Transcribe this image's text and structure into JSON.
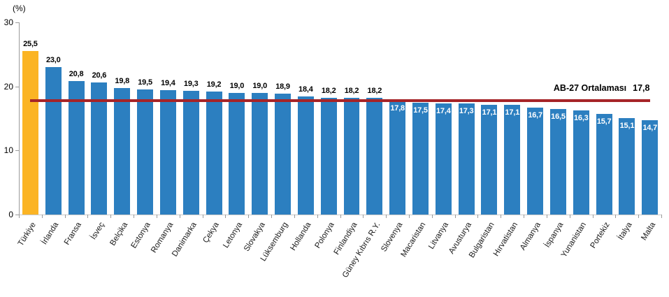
{
  "chart_data": {
    "type": "bar",
    "unit_label": "(%)",
    "categories": [
      "Türkiye",
      "İrlanda",
      "Fransa",
      "İsveç",
      "Belçika",
      "Estonya",
      "Romanya",
      "Danimarka",
      "Çekya",
      "Letonya",
      "Slovakya",
      "Lüksemburg",
      "Hollanda",
      "Polonya",
      "Finlandiya",
      "Güney Kıbrıs R.Y.",
      "Slovenya",
      "Macaristan",
      "Litvanya",
      "Avusturya",
      "Bulgaristan",
      "Hırvatistan",
      "Almanya",
      "İspanya",
      "Yunanistan",
      "Portekiz",
      "İtalya",
      "Malta"
    ],
    "values": [
      25.5,
      23.0,
      20.8,
      20.6,
      19.8,
      19.5,
      19.4,
      19.3,
      19.2,
      19.0,
      19.0,
      18.9,
      18.4,
      18.2,
      18.2,
      18.2,
      17.8,
      17.5,
      17.4,
      17.3,
      17.1,
      17.1,
      16.7,
      16.5,
      16.3,
      15.7,
      15.1,
      14.7
    ],
    "value_labels": [
      "25,5",
      "23,0",
      "20,8",
      "20,6",
      "19,8",
      "19,5",
      "19,4",
      "19,3",
      "19,2",
      "19,0",
      "19,0",
      "18,9",
      "18,4",
      "18,2",
      "18,2",
      "18,2",
      "17,8",
      "17,5",
      "17,4",
      "17,3",
      "17,1",
      "17,1",
      "16,7",
      "16,5",
      "16,3",
      "15,7",
      "15,1",
      "14,7"
    ],
    "ylim": [
      0,
      30
    ],
    "yticks": [
      0,
      10,
      20,
      30
    ],
    "grid": false,
    "avg_line": {
      "label": "AB-27 Ortalaması",
      "value": 17.8,
      "value_label": "17,8",
      "color": "#A62428"
    },
    "colors": {
      "highlight_bar": "#FBB424",
      "default_bar": "#2C7FC0"
    },
    "highlight_index": 0
  }
}
